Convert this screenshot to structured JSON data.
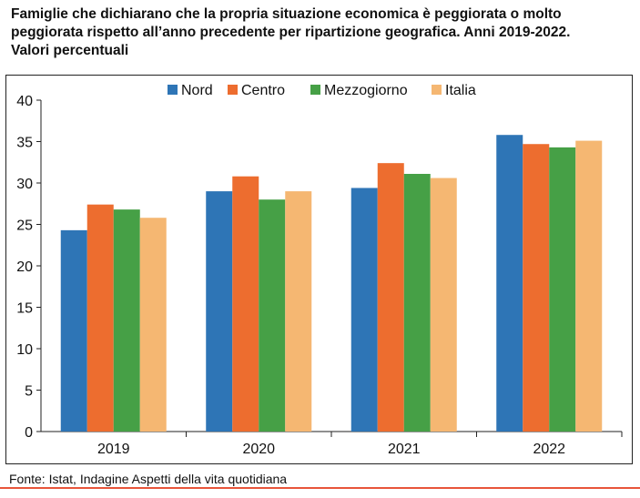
{
  "title_lines": [
    "Famiglie che dichiarano che la propria situazione economica è peggiorata o molto",
    "peggiorata rispetto all’anno precedente per ripartizione geografica. Anni 2019-2022.",
    "Valori percentuali"
  ],
  "source": "Fonte: Istat, Indagine Aspetti della vita quotidiana",
  "colors": {
    "Nord": "#2e75b6",
    "Centro": "#ed6d2f",
    "Mezzogiorno": "#46a046",
    "Italia": "#f5b772",
    "rule": "#e8553a"
  },
  "chart_data": {
    "type": "bar",
    "categories": [
      "2019",
      "2020",
      "2021",
      "2022"
    ],
    "series": [
      {
        "name": "Nord",
        "values": [
          24.3,
          29.0,
          29.4,
          35.8
        ]
      },
      {
        "name": "Centro",
        "values": [
          27.4,
          30.8,
          32.4,
          34.7
        ]
      },
      {
        "name": "Mezzogiorno",
        "values": [
          26.8,
          28.0,
          31.1,
          34.3
        ]
      },
      {
        "name": "Italia",
        "values": [
          25.8,
          29.0,
          30.6,
          35.1
        ]
      }
    ],
    "ylim": [
      0,
      40
    ],
    "yticks": [
      0,
      5,
      10,
      15,
      20,
      25,
      30,
      35,
      40
    ],
    "grid": false,
    "legend": "top-center"
  }
}
